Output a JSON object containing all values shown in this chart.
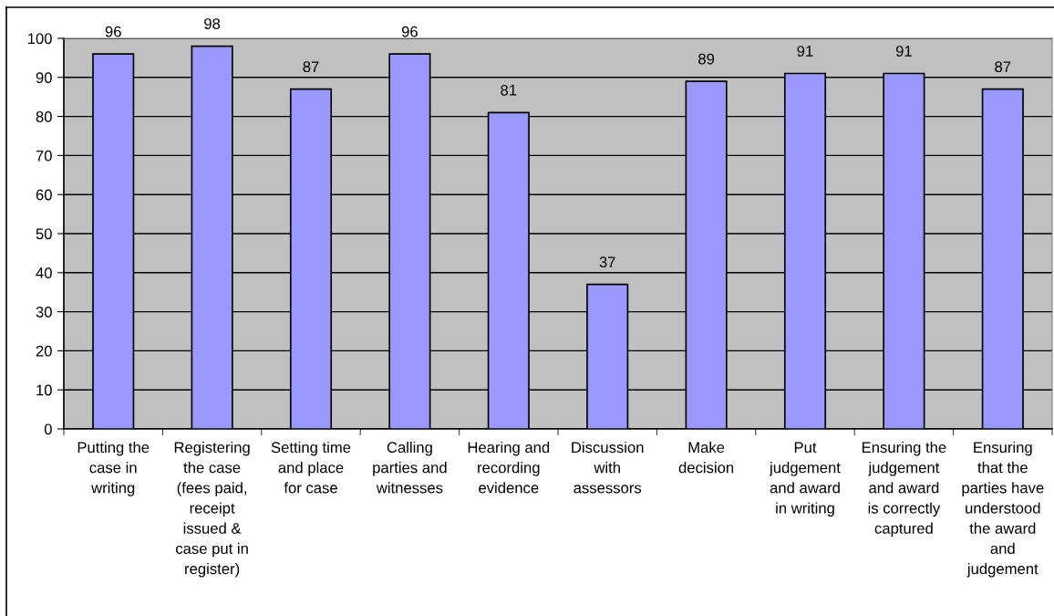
{
  "chart_data": {
    "type": "bar",
    "categories": [
      "Putting the\ncase in\nwriting",
      "Registering\nthe case\n(fees paid,\nreceipt\nissued &\ncase put in\nregister)",
      "Setting time\nand place\nfor case",
      "Calling\nparties and\nwitnesses",
      "Hearing and\nrecording\nevidence",
      "Discussion\nwith\nassessors",
      "Make\ndecision",
      "Put\njudgement\nand award\nin writing",
      "Ensuring the\njudgement\nand award\nis correctly\ncaptured",
      "Ensuring\nthat the\nparties have\nunderstood\nthe award\nand\njudgement"
    ],
    "values": [
      96,
      98,
      87,
      96,
      81,
      37,
      89,
      91,
      91,
      87
    ],
    "color": "#9999ff",
    "ylim": [
      0,
      100
    ],
    "yticks": [
      0,
      10,
      20,
      30,
      40,
      50,
      60,
      70,
      80,
      90,
      100
    ],
    "grid": "y",
    "data_labels": true
  }
}
